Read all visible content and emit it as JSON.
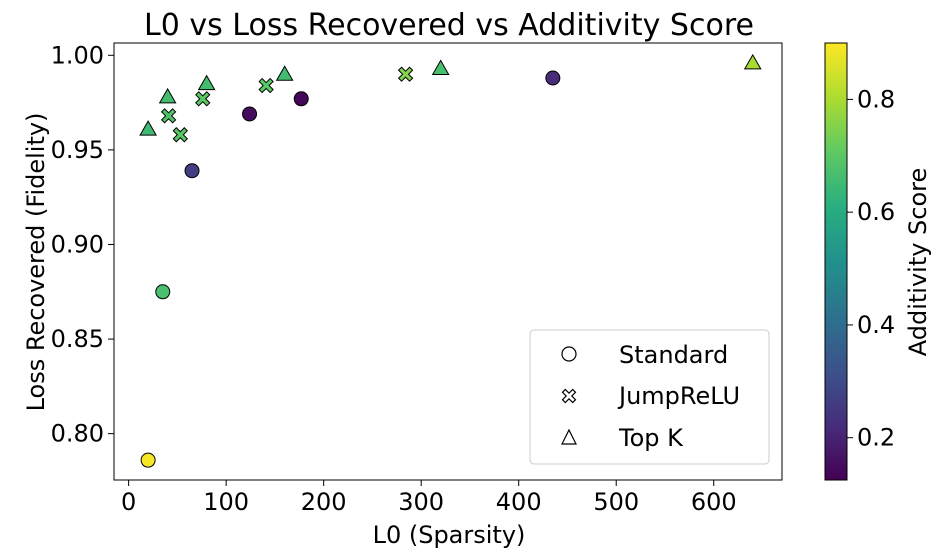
{
  "chart_data": {
    "type": "scatter",
    "title": "L0 vs Loss Recovered vs Additivity Score",
    "xlabel": "L0 (Sparsity)",
    "ylabel": "Loss Recovered (Fidelity)",
    "xlim": [
      -15,
      670
    ],
    "ylim": [
      0.7755,
      1.0065
    ],
    "xticks": [
      0,
      100,
      200,
      300,
      400,
      500,
      600
    ],
    "xtick_labels": [
      "0",
      "100",
      "200",
      "300",
      "400",
      "500",
      "600"
    ],
    "yticks": [
      0.8,
      0.85,
      0.9,
      0.95,
      1.0
    ],
    "ytick_labels": [
      "0.80",
      "0.85",
      "0.90",
      "0.95",
      "1.00"
    ],
    "grid": false,
    "legend_position": "lower-right",
    "colorbar": {
      "label": "Additivity Score",
      "range": [
        0.125,
        0.9
      ],
      "ticks": [
        0.2,
        0.4,
        0.6,
        0.8
      ],
      "tick_labels": [
        "0.2",
        "0.4",
        "0.6",
        "0.8"
      ],
      "colormap": "viridis"
    },
    "series": [
      {
        "name": "Standard",
        "marker": "circle",
        "points": [
          {
            "x": 20,
            "y": 0.786,
            "c": 0.89
          },
          {
            "x": 35,
            "y": 0.875,
            "c": 0.67
          },
          {
            "x": 65,
            "y": 0.939,
            "c": 0.27
          },
          {
            "x": 124,
            "y": 0.969,
            "c": 0.15
          },
          {
            "x": 177,
            "y": 0.977,
            "c": 0.14
          },
          {
            "x": 435,
            "y": 0.988,
            "c": 0.22
          }
        ]
      },
      {
        "name": "JumpReLU",
        "marker": "x-filled",
        "points": [
          {
            "x": 41,
            "y": 0.968,
            "c": 0.68
          },
          {
            "x": 53,
            "y": 0.958,
            "c": 0.7
          },
          {
            "x": 76,
            "y": 0.977,
            "c": 0.7
          },
          {
            "x": 141,
            "y": 0.984,
            "c": 0.7
          },
          {
            "x": 284,
            "y": 0.99,
            "c": 0.75
          }
        ]
      },
      {
        "name": "Top K",
        "marker": "triangle",
        "points": [
          {
            "x": 20,
            "y": 0.961,
            "c": 0.65
          },
          {
            "x": 40,
            "y": 0.978,
            "c": 0.66
          },
          {
            "x": 80,
            "y": 0.985,
            "c": 0.66
          },
          {
            "x": 160,
            "y": 0.99,
            "c": 0.66
          },
          {
            "x": 320,
            "y": 0.993,
            "c": 0.67
          },
          {
            "x": 640,
            "y": 0.996,
            "c": 0.8
          }
        ]
      }
    ]
  }
}
